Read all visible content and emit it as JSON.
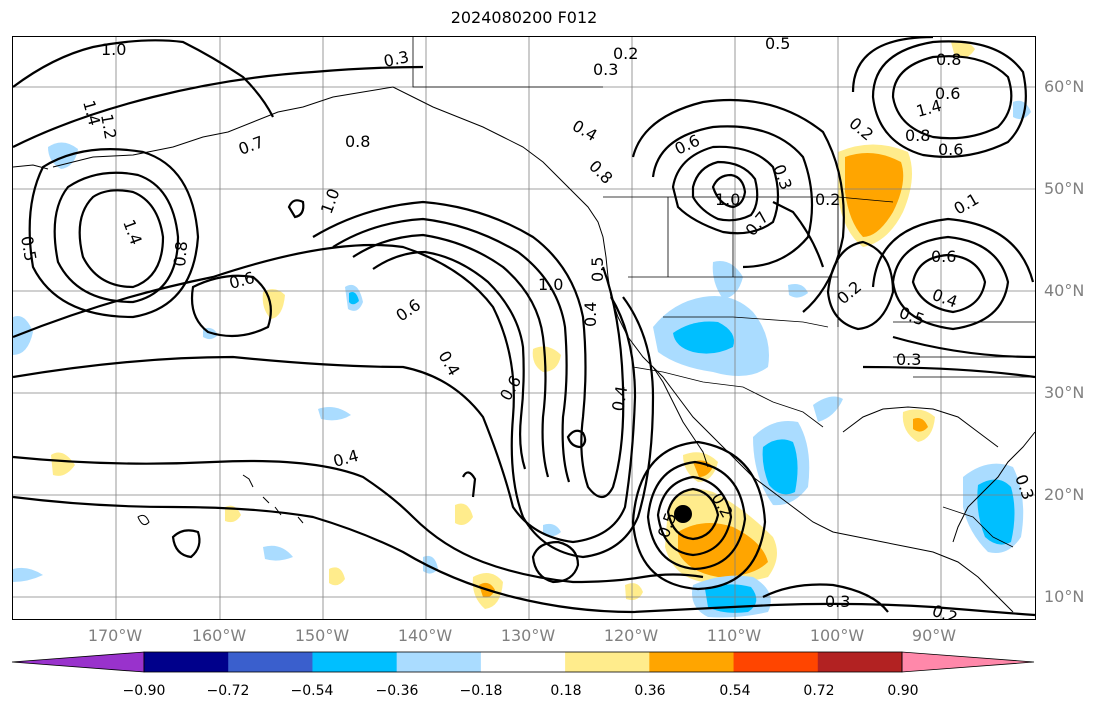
{
  "title": "2024080200 F012",
  "lat_labels": [
    "60°N",
    "50°N",
    "40°N",
    "30°N",
    "20°N",
    "10°N"
  ],
  "lon_labels": [
    "170°W",
    "160°W",
    "150°W",
    "140°W",
    "130°W",
    "120°W",
    "110°W",
    "100°W",
    "90°W"
  ],
  "colorbar": {
    "ticks": [
      "−0.90",
      "−0.72",
      "−0.54",
      "−0.36",
      "−0.18",
      "0.18",
      "0.36",
      "0.54",
      "0.72",
      "0.90"
    ],
    "colors": [
      "#9932cc",
      "#00008b",
      "#3a5fcd",
      "#00bfff",
      "#aadcff",
      "#ffffff",
      "#ffec8c",
      "#ffa500",
      "#ff4500",
      "#b22222",
      "#ff88aa"
    ]
  },
  "contour_labels": [
    "1.0",
    "1.2",
    "1.4",
    "0.3",
    "0.2",
    "0.3",
    "0.5",
    "0.4",
    "0.6",
    "0.7",
    "0.8",
    "1.0",
    "0.8",
    "0.7",
    "0.3",
    "0.2",
    "1.0",
    "0.6",
    "0.8",
    "1.4",
    "0.8",
    "0.6",
    "0.2",
    "0.5",
    "1.4",
    "0.6",
    "1.0",
    "0.8",
    "0.6",
    "0.4",
    "0.4",
    "0.6",
    "0.4",
    "0.5",
    "0.4",
    "0.1",
    "0.3",
    "0.5",
    "0.6",
    "0.4",
    "0.2",
    "0.5",
    "0.3",
    "0.2",
    "0.3",
    "0.2"
  ],
  "storm_marker": "tropical-cyclone-center"
}
